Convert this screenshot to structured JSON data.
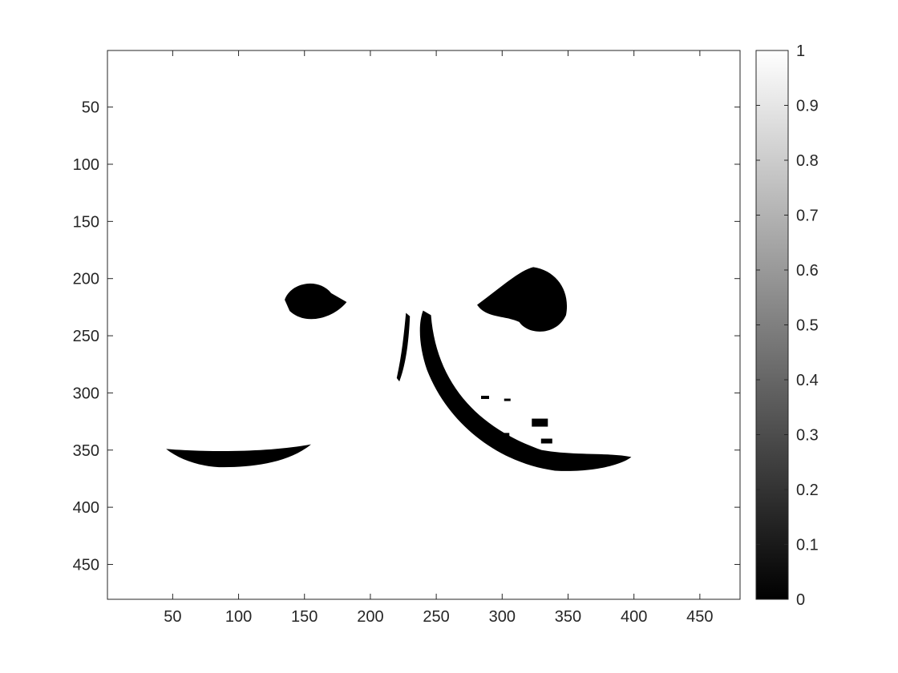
{
  "chart_data": {
    "type": "heatmap",
    "title": "",
    "xlabel": "",
    "ylabel": "",
    "xlim": [
      0.5,
      480.5
    ],
    "ylim": [
      0.5,
      480.5
    ],
    "y_reversed": true,
    "x_ticks": [
      "50",
      "100",
      "150",
      "200",
      "250",
      "300",
      "350",
      "400",
      "450"
    ],
    "y_ticks": [
      "50",
      "100",
      "150",
      "200",
      "250",
      "300",
      "350",
      "400",
      "450"
    ],
    "colorbar": {
      "min": 0,
      "max": 1,
      "colormap": "gray",
      "ticks": [
        "0",
        "0.1",
        "0.2",
        "0.3",
        "0.4",
        "0.5",
        "0.6",
        "0.7",
        "0.8",
        "0.9",
        "1"
      ]
    },
    "background_value": 1,
    "regions": [
      {
        "name": "left-eye",
        "value": 0,
        "x": [
          135,
          182
        ],
        "y": [
          201,
          240
        ]
      },
      {
        "name": "right-eye",
        "value": 0,
        "x": [
          281,
          352
        ],
        "y": [
          190,
          250
        ]
      },
      {
        "name": "nose-left-stroke",
        "value": 0,
        "x": [
          220,
          230
        ],
        "y": [
          230,
          290
        ]
      },
      {
        "name": "nose-curve",
        "value": 0,
        "x": [
          235,
          400
        ],
        "y": [
          228,
          368
        ]
      },
      {
        "name": "left-mouth",
        "value": 0,
        "x": [
          45,
          155
        ],
        "y": [
          345,
          365
        ]
      },
      {
        "name": "cheek-specks",
        "value": 0,
        "x": [
          270,
          340
        ],
        "y": [
          300,
          350
        ]
      }
    ],
    "grid": false
  },
  "colors": {
    "axis": "#262626",
    "background": "#ffffff",
    "mask": "#000000"
  }
}
